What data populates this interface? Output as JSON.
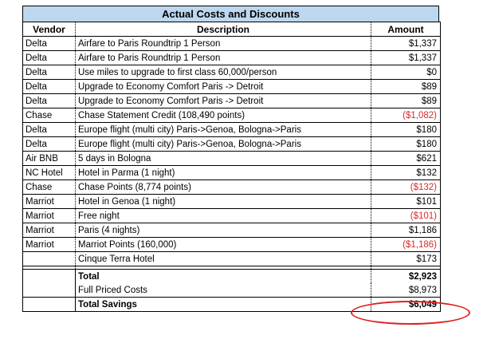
{
  "title": "Actual Costs and Discounts",
  "headers": {
    "vendor": "Vendor",
    "description": "Description",
    "amount": "Amount"
  },
  "rows": [
    {
      "vendor": "Delta",
      "description": "Airfare to Paris Roundtrip 1 Person",
      "amount": "$1,337",
      "negative": false
    },
    {
      "vendor": "Delta",
      "description": "Airfare to Paris Roundtrip 1 Person",
      "amount": "$1,337",
      "negative": false
    },
    {
      "vendor": "Delta",
      "description": "Use miles to upgrade to first class 60,000/person",
      "amount": "$0",
      "negative": false
    },
    {
      "vendor": "Delta",
      "description": "Upgrade to Economy Comfort Paris -> Detroit",
      "amount": "$89",
      "negative": false
    },
    {
      "vendor": "Delta",
      "description": "Upgrade to Economy Comfort Paris -> Detroit",
      "amount": "$89",
      "negative": false
    },
    {
      "vendor": "Chase",
      "description": "Chase Statement Credit (108,490 points)",
      "amount": "($1,082)",
      "negative": true
    },
    {
      "vendor": "Delta",
      "description": "Europe flight (multi city) Paris->Genoa, Bologna->Paris",
      "amount": "$180",
      "negative": false
    },
    {
      "vendor": "Delta",
      "description": "Europe flight (multi city) Paris->Genoa, Bologna->Paris",
      "amount": "$180",
      "negative": false
    },
    {
      "vendor": "Air BNB",
      "description": "5 days in Bologna",
      "amount": "$621",
      "negative": false
    },
    {
      "vendor": "NC Hotel",
      "description": "Hotel in Parma (1 night)",
      "amount": "$132",
      "negative": false
    },
    {
      "vendor": "Chase",
      "description": "Chase Points (8,774 points)",
      "amount": "($132)",
      "negative": true
    },
    {
      "vendor": "Marriot",
      "description": "Hotel in Genoa (1 night)",
      "amount": "$101",
      "negative": false
    },
    {
      "vendor": "Marriot",
      "description": "Free night",
      "amount": "($101)",
      "negative": true
    },
    {
      "vendor": "Marriot",
      "description": "Paris (4 nights)",
      "amount": "$1,186",
      "negative": false
    },
    {
      "vendor": "Marriot",
      "description": "Marriot Points (160,000)",
      "amount": "($1,186)",
      "negative": true
    },
    {
      "vendor": "",
      "description": "Cinque Terra Hotel",
      "amount": "$173",
      "negative": false
    }
  ],
  "summary": {
    "total": {
      "label": "Total",
      "amount": "$2,923"
    },
    "full_priced": {
      "label": "Full Priced Costs",
      "amount": "$8,973"
    },
    "savings": {
      "label": "Total Savings",
      "amount": "$6,049"
    }
  },
  "colors": {
    "header_fill": "#bdd7ee",
    "negative": "#d62b2b",
    "highlight": "#e02020"
  }
}
